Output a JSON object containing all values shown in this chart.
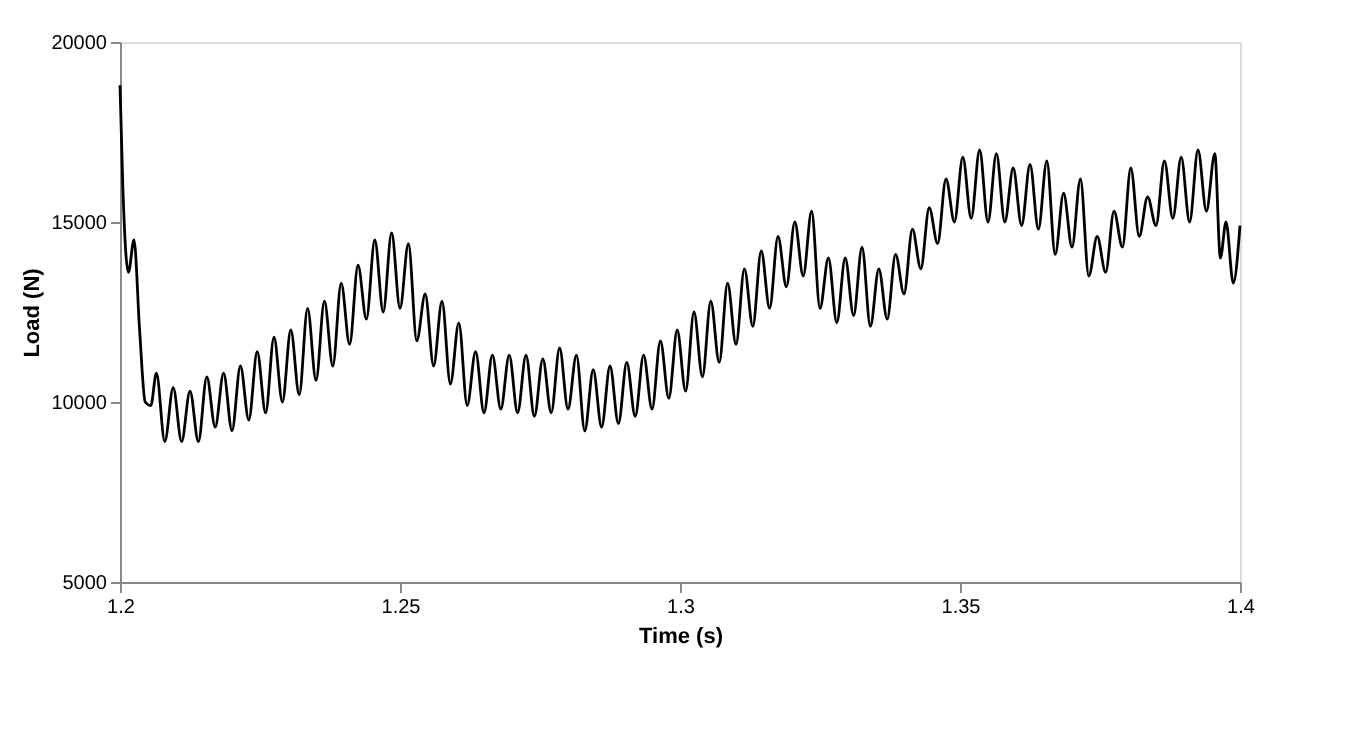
{
  "chart_data": {
    "type": "line",
    "xlabel": "Time (s)",
    "ylabel": "Load (N)",
    "xlim": [
      1.2,
      1.4
    ],
    "xticks": [
      1.2,
      1.25,
      1.3,
      1.35,
      1.4
    ],
    "ylim": [
      5000,
      20000
    ],
    "yticks": [
      5000,
      10000,
      15000,
      20000
    ],
    "grid": false,
    "legend": false,
    "marker": "none",
    "line_style": "solid",
    "series": [
      {
        "color": "#000000",
        "x": [
          1.2,
          1.2005,
          1.2015,
          1.2025,
          1.2035,
          1.2045,
          1.2055,
          1.2065,
          1.208,
          1.2095,
          1.211,
          1.2125,
          1.214,
          1.2155,
          1.217,
          1.2185,
          1.22,
          1.2215,
          1.223,
          1.2245,
          1.226,
          1.2275,
          1.229,
          1.2305,
          1.232,
          1.2335,
          1.235,
          1.2365,
          1.238,
          1.2395,
          1.241,
          1.2425,
          1.244,
          1.2455,
          1.247,
          1.2485,
          1.25,
          1.2515,
          1.253,
          1.2545,
          1.256,
          1.2575,
          1.259,
          1.2605,
          1.262,
          1.2635,
          1.265,
          1.2665,
          1.268,
          1.2695,
          1.271,
          1.2725,
          1.274,
          1.2755,
          1.277,
          1.2785,
          1.28,
          1.2815,
          1.283,
          1.2845,
          1.286,
          1.2875,
          1.289,
          1.2905,
          1.292,
          1.2935,
          1.295,
          1.2965,
          1.298,
          1.2995,
          1.301,
          1.3025,
          1.304,
          1.3055,
          1.307,
          1.3085,
          1.31,
          1.3115,
          1.313,
          1.3145,
          1.316,
          1.3175,
          1.319,
          1.3205,
          1.322,
          1.3235,
          1.325,
          1.3265,
          1.328,
          1.3295,
          1.331,
          1.3325,
          1.334,
          1.3355,
          1.337,
          1.3385,
          1.34,
          1.3415,
          1.343,
          1.3445,
          1.346,
          1.3475,
          1.349,
          1.3505,
          1.352,
          1.3535,
          1.355,
          1.3565,
          1.358,
          1.3595,
          1.361,
          1.3625,
          1.364,
          1.3655,
          1.367,
          1.3685,
          1.37,
          1.3715,
          1.373,
          1.3745,
          1.376,
          1.3775,
          1.379,
          1.3805,
          1.382,
          1.3835,
          1.385,
          1.3865,
          1.388,
          1.3895,
          1.391,
          1.3925,
          1.394,
          1.3955,
          1.3965,
          1.3975,
          1.3988,
          1.4
        ],
        "values": [
          18800,
          16000,
          13600,
          14500,
          12000,
          10000,
          9900,
          10800,
          8900,
          10400,
          8900,
          10300,
          8900,
          10700,
          9300,
          10800,
          9200,
          11000,
          9500,
          11400,
          9700,
          11800,
          10000,
          12000,
          10200,
          12600,
          10600,
          12800,
          11000,
          13300,
          11600,
          13800,
          12300,
          14500,
          12500,
          14700,
          12600,
          14400,
          11700,
          13000,
          11000,
          12800,
          10500,
          12200,
          9900,
          11400,
          9700,
          11300,
          9800,
          11300,
          9700,
          11300,
          9600,
          11200,
          9700,
          11500,
          9800,
          11300,
          9200,
          10900,
          9300,
          11000,
          9400,
          11100,
          9600,
          11300,
          9800,
          11700,
          10100,
          12000,
          10300,
          12500,
          10700,
          12800,
          11100,
          13300,
          11600,
          13700,
          12100,
          14200,
          12600,
          14600,
          13200,
          15000,
          13500,
          15300,
          12600,
          14000,
          12200,
          14000,
          12400,
          14300,
          12100,
          13700,
          12300,
          14100,
          13000,
          14800,
          13700,
          15400,
          14400,
          16200,
          15000,
          16800,
          15100,
          17000,
          15000,
          16900,
          15000,
          16500,
          14900,
          16600,
          14800,
          16700,
          14100,
          15800,
          14300,
          16200,
          13500,
          14600,
          13600,
          15300,
          14300,
          16500,
          14600,
          15700,
          14900,
          16700,
          15100,
          16800,
          15000,
          17000,
          15300,
          16900,
          14000,
          15000,
          13300,
          14900
        ]
      }
    ]
  }
}
